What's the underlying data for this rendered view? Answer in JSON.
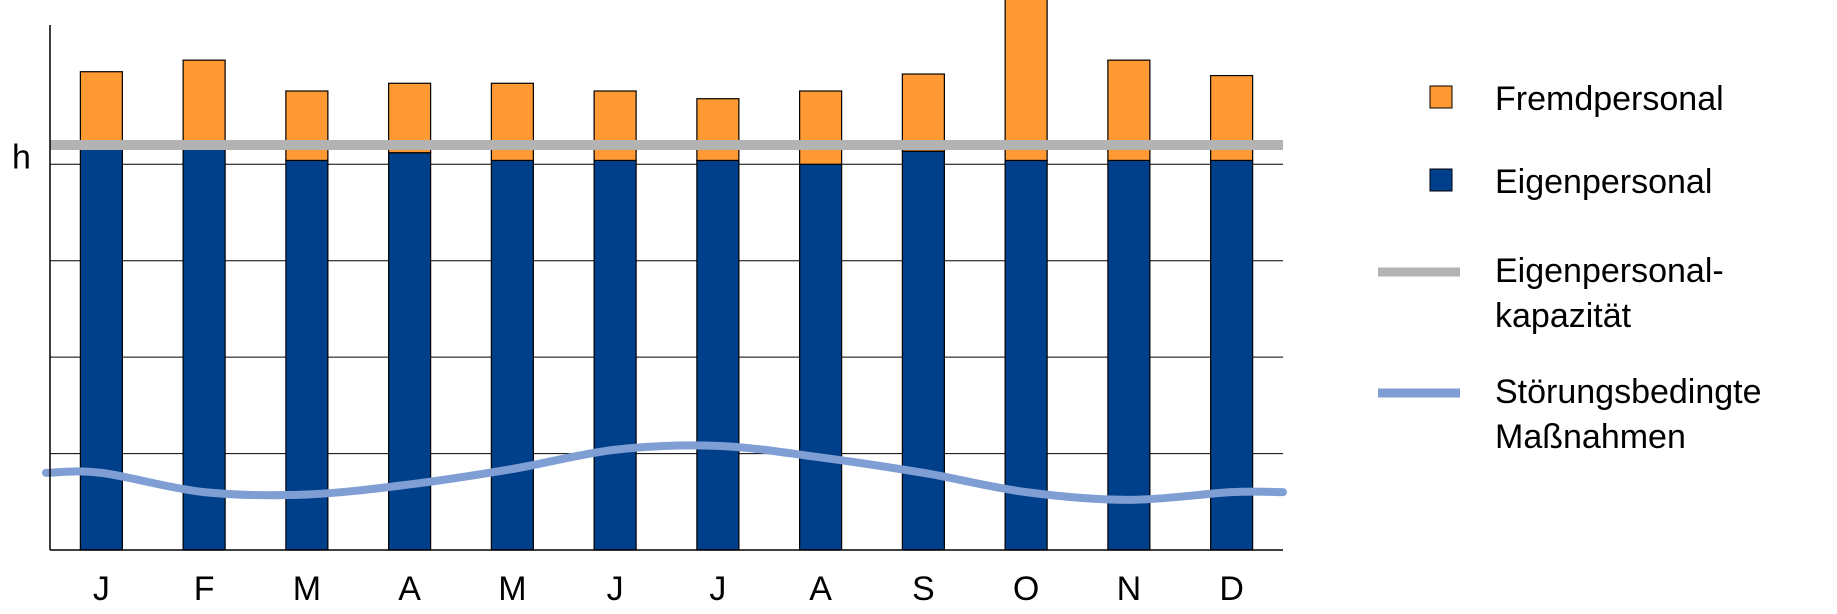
{
  "chart_data": {
    "type": "bar",
    "stacked": true,
    "categories": [
      "J",
      "F",
      "M",
      "A",
      "M",
      "J",
      "J",
      "A",
      "S",
      "O",
      "N",
      "D"
    ],
    "ylabel": "h",
    "ylim": [
      0,
      7
    ],
    "yticks": [
      5
    ],
    "grid": "horizontal",
    "legend_position": "right",
    "series": [
      {
        "name": "Eigenpersonal",
        "kind": "bar",
        "color": "#003f8a",
        "values": [
          5.2,
          5.2,
          5.05,
          5.15,
          5.05,
          5.05,
          5.05,
          5.0,
          5.17,
          5.05,
          5.05,
          5.05
        ]
      },
      {
        "name": "Fremdpersonal",
        "kind": "bar",
        "color": "#ff9933",
        "values": [
          1.0,
          1.15,
          0.9,
          0.9,
          1.0,
          0.9,
          0.8,
          0.95,
          1.0,
          2.11,
          1.3,
          1.1
        ]
      },
      {
        "name": "Eigenpersonal-\nkapazität",
        "kind": "line",
        "color": "#b3b3b3",
        "values": [
          5.25,
          5.25,
          5.25,
          5.25,
          5.25,
          5.25,
          5.25,
          5.25,
          5.25,
          5.25,
          5.25,
          5.25
        ]
      },
      {
        "name": "Störungsbedingte\nMaßnahmen",
        "kind": "line",
        "color": "#7f9ed4",
        "values": [
          1.0,
          0.75,
          0.72,
          0.85,
          1.05,
          1.3,
          1.35,
          1.2,
          1.0,
          0.75,
          0.65,
          0.75
        ]
      }
    ],
    "legend": [
      {
        "label_lines": [
          "Fremdpersonal"
        ],
        "marker": "square",
        "color": "#ff9933"
      },
      {
        "label_lines": [
          "Eigenpersonal"
        ],
        "marker": "square",
        "color": "#003f8a"
      },
      {
        "label_lines": [
          "Eigenpersonal-",
          "kapazität"
        ],
        "marker": "line",
        "color": "#b3b3b3"
      },
      {
        "label_lines": [
          "Störungsbedingte",
          "Maßnahmen"
        ],
        "marker": "line",
        "color": "#7f9ed4"
      }
    ]
  }
}
